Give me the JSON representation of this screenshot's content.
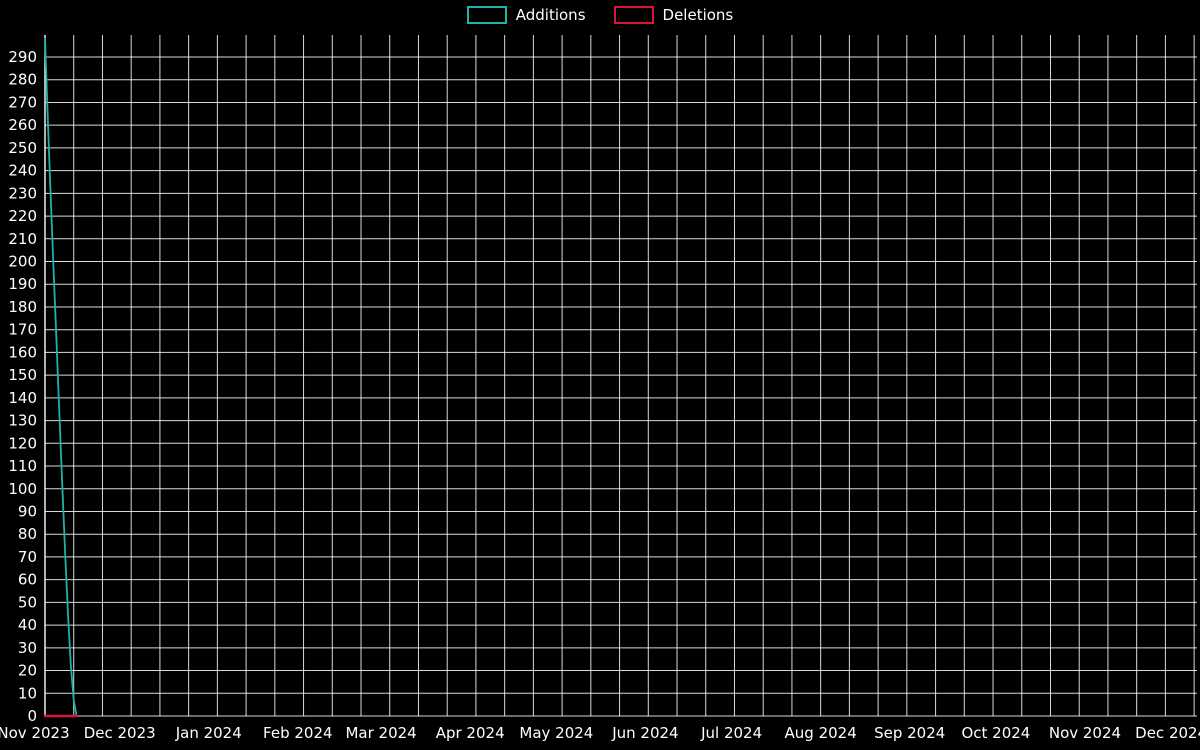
{
  "chart_data": {
    "type": "line",
    "title": "",
    "background": "#000000",
    "grid_color": "#ffffff",
    "text_color": "#ffffff",
    "legend_position": "top-center",
    "grid": true,
    "ylim": [
      0,
      300
    ],
    "grid_x_interval_days": 10,
    "x_domain": [
      "2023-11-05",
      "2024-12-10"
    ],
    "y_ticks": [
      0,
      10,
      20,
      30,
      40,
      50,
      60,
      70,
      80,
      90,
      100,
      110,
      120,
      130,
      140,
      150,
      160,
      170,
      180,
      190,
      200,
      210,
      220,
      230,
      240,
      250,
      260,
      270,
      280,
      290
    ],
    "x_ticks": [
      {
        "label": "Nov 2023",
        "date": "2023-11-01"
      },
      {
        "label": "Dec 2023",
        "date": "2023-12-01"
      },
      {
        "label": "Jan 2024",
        "date": "2024-01-01"
      },
      {
        "label": "Feb 2024",
        "date": "2024-02-01"
      },
      {
        "label": "Mar 2024",
        "date": "2024-03-01"
      },
      {
        "label": "Apr 2024",
        "date": "2024-04-01"
      },
      {
        "label": "May 2024",
        "date": "2024-05-01"
      },
      {
        "label": "Jun 2024",
        "date": "2024-06-01"
      },
      {
        "label": "Jul 2024",
        "date": "2024-07-01"
      },
      {
        "label": "Aug 2024",
        "date": "2024-08-01"
      },
      {
        "label": "Sep 2024",
        "date": "2024-09-01"
      },
      {
        "label": "Oct 2024",
        "date": "2024-10-01"
      },
      {
        "label": "Nov 2024",
        "date": "2024-11-01"
      },
      {
        "label": "Dec 2024",
        "date": "2024-12-01"
      }
    ],
    "legend": [
      {
        "label": "Additions",
        "color": "#20B2AA"
      },
      {
        "label": "Deletions",
        "color": "#DC143C"
      }
    ],
    "series": [
      {
        "name": "Additions",
        "color": "#20B2AA",
        "stroke_width": 1.8,
        "points": [
          [
            "2023-11-05",
            298
          ],
          [
            "2023-11-06",
            262
          ],
          [
            "2023-11-07",
            228
          ],
          [
            "2023-11-08",
            196
          ],
          [
            "2023-11-09",
            165
          ],
          [
            "2023-11-10",
            133
          ],
          [
            "2023-11-11",
            102
          ],
          [
            "2023-11-12",
            72
          ],
          [
            "2023-11-13",
            45
          ],
          [
            "2023-11-14",
            22
          ],
          [
            "2023-11-15",
            7
          ],
          [
            "2023-11-16",
            0
          ]
        ]
      },
      {
        "name": "Deletions",
        "color": "#DC143C",
        "stroke_width": 2.5,
        "points": [
          [
            "2023-11-05",
            0
          ],
          [
            "2023-11-16",
            0
          ]
        ]
      }
    ]
  }
}
